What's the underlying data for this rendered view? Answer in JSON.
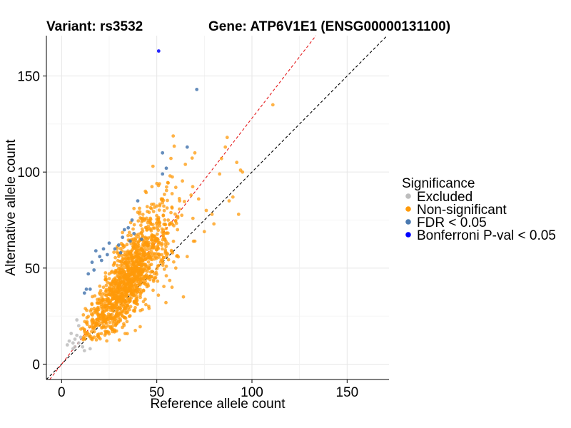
{
  "chart_data": {
    "type": "scatter",
    "title_left": "Variant: rs3532",
    "title_right": "Gene: ATP6V1E1 (ENSG00000131100)",
    "xlabel": "Reference allele count",
    "ylabel": "Alternative allele count",
    "xlim": [
      -8,
      172
    ],
    "ylim": [
      -8,
      171
    ],
    "xticks": [
      0,
      50,
      100,
      150
    ],
    "yticks": [
      0,
      50,
      100,
      150
    ],
    "grid": true,
    "reference_lines": [
      {
        "name": "identity",
        "slope": 1.0,
        "intercept": 0,
        "color": "#000000",
        "dash": true
      },
      {
        "name": "fit",
        "slope": 1.28,
        "intercept": 0,
        "color": "#e41a1c",
        "dash": true
      }
    ],
    "legend": {
      "title": "Significance",
      "placement": "right",
      "items": [
        {
          "label": "Excluded",
          "color": "#bdbdbd"
        },
        {
          "label": "Non-significant",
          "color": "#ff9a0a"
        },
        {
          "label": "FDR < 0.05",
          "color": "#4a79b0"
        },
        {
          "label": "Bonferroni P-val < 0.05",
          "color": "#0000ff"
        }
      ]
    },
    "series": [
      {
        "name": "Excluded",
        "color": "#bdbdbd",
        "points": [
          [
            3,
            10
          ],
          [
            5,
            16
          ],
          [
            6,
            11
          ],
          [
            7,
            13
          ],
          [
            8,
            23
          ],
          [
            9,
            20
          ],
          [
            10,
            14
          ],
          [
            4,
            12
          ],
          [
            7,
            9
          ],
          [
            12,
            7
          ],
          [
            15,
            8
          ],
          [
            11,
            9
          ],
          [
            6,
            8
          ],
          [
            9,
            11
          ],
          [
            8,
            15
          ]
        ]
      },
      {
        "name": "Non-significant",
        "color": "#ff9a0a",
        "generated": true,
        "count": 1300,
        "seed": 7,
        "ref_range": [
          10,
          75
        ],
        "ref_mean": 35,
        "ref_sd": 11,
        "slope": 1.27,
        "noise_sd": 9,
        "extra_points": [
          [
            111,
            135
          ],
          [
            95,
            100
          ],
          [
            88,
            85
          ],
          [
            94,
            101
          ],
          [
            93,
            78
          ],
          [
            84,
            107
          ],
          [
            80,
            73
          ],
          [
            86,
            113
          ],
          [
            87,
            118
          ],
          [
            92,
            105
          ],
          [
            83,
            99
          ],
          [
            90,
            87
          ],
          [
            76,
            80
          ],
          [
            79,
            78
          ],
          [
            64,
            35
          ],
          [
            48,
            103
          ],
          [
            44,
            90
          ],
          [
            57,
            98
          ],
          [
            45,
            82
          ],
          [
            50,
            94
          ],
          [
            60,
            92
          ],
          [
            65,
            104
          ],
          [
            70,
            110
          ],
          [
            22,
            40
          ],
          [
            12,
            18
          ],
          [
            13,
            15
          ],
          [
            16,
            22
          ],
          [
            18,
            20
          ],
          [
            30,
            56
          ],
          [
            25,
            47
          ],
          [
            38,
            81
          ],
          [
            40,
            79
          ],
          [
            55,
            46
          ],
          [
            60,
            50
          ],
          [
            66,
            56
          ],
          [
            70,
            64
          ],
          [
            58,
            40
          ],
          [
            53,
            54
          ],
          [
            75,
            69
          ],
          [
            72,
            86
          ],
          [
            68,
            88
          ],
          [
            62,
            85
          ],
          [
            56,
            75
          ]
        ]
      },
      {
        "name": "FDR < 0.05",
        "color": "#4a79b0",
        "points": [
          [
            71,
            143
          ],
          [
            53,
            110
          ],
          [
            55,
            102
          ],
          [
            53,
            99
          ],
          [
            66,
            113
          ],
          [
            40,
            85
          ],
          [
            35,
            71
          ],
          [
            33,
            70
          ],
          [
            37,
            75
          ],
          [
            25,
            63
          ],
          [
            28,
            60
          ],
          [
            31,
            58
          ],
          [
            32,
            66
          ],
          [
            20,
            56
          ],
          [
            22,
            60
          ],
          [
            16,
            53
          ],
          [
            18,
            59
          ],
          [
            14,
            47
          ],
          [
            15,
            39
          ],
          [
            13,
            39
          ],
          [
            12,
            37
          ],
          [
            17,
            49
          ],
          [
            42,
            65
          ],
          [
            38,
            68
          ],
          [
            30,
            62
          ],
          [
            36,
            64
          ],
          [
            24,
            57
          ],
          [
            21,
            54
          ]
        ]
      },
      {
        "name": "Bonferroni P-val < 0.05",
        "color": "#0000ff",
        "points": [
          [
            51,
            163
          ]
        ]
      }
    ]
  }
}
